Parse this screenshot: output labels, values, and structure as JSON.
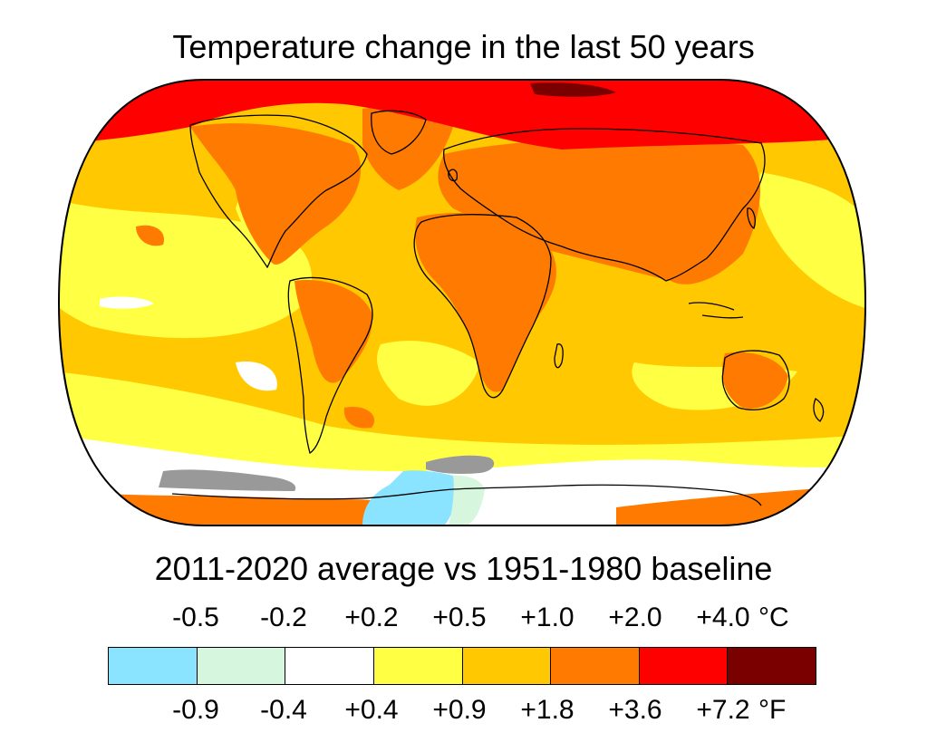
{
  "title": "Temperature change in the last 50 years",
  "subtitle": "2011-2020 average vs 1951-1980 baseline",
  "legend": {
    "celsius_ticks": [
      "-0.5",
      "-0.2",
      "+0.2",
      "+0.5",
      "+1.0",
      "+2.0",
      "+4.0"
    ],
    "celsius_unit": "°C",
    "fahrenheit_ticks": [
      "-0.9",
      "-0.4",
      "+0.4",
      "+0.9",
      "+1.8",
      "+3.6",
      "+7.2"
    ],
    "fahrenheit_unit": "°F",
    "bins": [
      {
        "color": "#8ae4ff"
      },
      {
        "color": "#d6f7de"
      },
      {
        "color": "#ffffff"
      },
      {
        "color": "#ffff44"
      },
      {
        "color": "#ffc800"
      },
      {
        "color": "#ff7a00"
      },
      {
        "color": "#ff0000"
      },
      {
        "color": "#7a0000"
      }
    ]
  },
  "map_colors": {
    "ocean_base": "#ffc800",
    "land_warm": "#ff7a00",
    "arctic": "#ff0000",
    "arctic_max": "#7a0000",
    "yellow": "#ffff44",
    "white": "#ffffff",
    "light_green": "#d6f7de",
    "light_blue": "#8ae4ff",
    "no_data": "#999999",
    "coastline": "#000000"
  }
}
